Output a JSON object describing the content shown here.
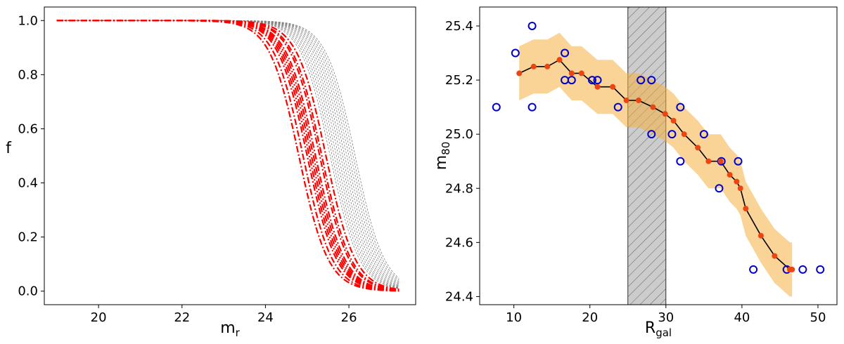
{
  "chart_data": [
    {
      "type": "line",
      "xlabel": "m",
      "xlabel_sub": "r",
      "ylabel": "f",
      "xlim": [
        18.7,
        27.6
      ],
      "ylim": [
        -0.05,
        1.05
      ],
      "xticks": [
        20,
        22,
        24,
        26
      ],
      "yticks": [
        0.0,
        0.2,
        0.4,
        0.6,
        0.8,
        1.0
      ],
      "x_range": [
        19.0,
        27.2
      ],
      "colors": {
        "red": "#ff0000",
        "gray": "#808080"
      },
      "series_gray_m50": [
        25.55,
        25.6,
        25.65,
        25.7,
        25.75,
        25.8,
        25.85,
        25.9,
        25.95,
        26.0,
        26.05,
        26.1,
        26.15
      ],
      "series_red_m50": [
        24.8,
        24.9,
        25.0,
        25.05,
        25.1,
        25.15,
        25.2,
        25.3,
        25.35,
        25.45
      ],
      "series_width": 0.35
    },
    {
      "type": "line",
      "xlabel": "R",
      "xlabel_sub": "gal",
      "ylabel": "m",
      "ylabel_sub": "80",
      "xlim": [
        5.5,
        52.5
      ],
      "ylim": [
        24.37,
        25.47
      ],
      "xticks": [
        10,
        20,
        30,
        40,
        50
      ],
      "yticks": [
        24.4,
        24.6,
        24.8,
        25.0,
        25.2,
        25.4
      ],
      "shaded_region": {
        "x_from": 25,
        "x_to": 30
      },
      "colors": {
        "line": "#000000",
        "points": "#ee4411",
        "circles": "#0000cc",
        "band": "#f5b041",
        "hatch_fill": "#cccccc"
      },
      "circles": [
        [
          7.7,
          25.1
        ],
        [
          10.2,
          25.3
        ],
        [
          12.4,
          25.4
        ],
        [
          12.4,
          25.1
        ],
        [
          16.7,
          25.3
        ],
        [
          16.7,
          25.2
        ],
        [
          17.6,
          25.2
        ],
        [
          20.3,
          25.2
        ],
        [
          21.0,
          25.2
        ],
        [
          23.7,
          25.1
        ],
        [
          26.7,
          25.2
        ],
        [
          28.1,
          25.2
        ],
        [
          28.1,
          25.0
        ],
        [
          30.8,
          25.0
        ],
        [
          31.9,
          24.9
        ],
        [
          31.9,
          25.1
        ],
        [
          35.0,
          25.0
        ],
        [
          37.0,
          24.8
        ],
        [
          37.3,
          24.9
        ],
        [
          39.5,
          24.9
        ],
        [
          41.5,
          24.5
        ],
        [
          45.9,
          24.5
        ],
        [
          48.0,
          24.5
        ],
        [
          50.3,
          24.5
        ]
      ],
      "x": [
        10.7,
        12.6,
        14.4,
        16.0,
        17.6,
        18.9,
        21.0,
        23.0,
        24.8,
        26.4,
        28.3,
        29.9,
        31.0,
        32.4,
        34.2,
        35.6,
        37.2,
        38.4,
        39.3,
        39.8,
        40.5,
        42.5,
        44.3,
        46.3,
        46.6
      ],
      "values": [
        25.225,
        25.25,
        25.25,
        25.275,
        25.225,
        25.225,
        25.175,
        25.175,
        25.125,
        25.125,
        25.1,
        25.075,
        25.05,
        25.0,
        24.95,
        24.9,
        24.9,
        24.85,
        24.825,
        24.8,
        24.725,
        24.625,
        24.55,
        24.5,
        24.5
      ],
      "band_halfwidth": 0.1
    }
  ]
}
